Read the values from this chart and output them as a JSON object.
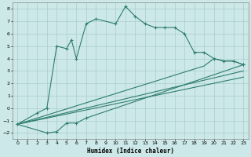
{
  "xlabel": "Humidex (Indice chaleur)",
  "bg_color": "#cce8e8",
  "line_color": "#2e7d6e",
  "grid_color": "#aacccc",
  "xlim": [
    -0.5,
    23.5
  ],
  "ylim": [
    -2.5,
    8.5
  ],
  "xticks": [
    0,
    1,
    2,
    3,
    4,
    5,
    6,
    7,
    8,
    9,
    10,
    11,
    12,
    13,
    14,
    15,
    16,
    17,
    18,
    19,
    20,
    21,
    22,
    23
  ],
  "yticks": [
    -2,
    -1,
    0,
    1,
    2,
    3,
    4,
    5,
    6,
    7,
    8
  ],
  "line1_x": [
    0,
    2,
    3,
    4,
    5,
    5.5,
    6,
    7,
    8,
    10,
    11,
    12,
    13,
    14,
    15,
    16,
    17,
    18,
    19,
    20,
    21,
    22,
    23
  ],
  "line1_y": [
    -1.3,
    -0.4,
    0.0,
    5.0,
    4.8,
    5.5,
    4.0,
    6.8,
    7.2,
    6.8,
    8.2,
    7.4,
    6.8,
    6.5,
    6.5,
    6.5,
    6.0,
    4.5,
    4.5,
    4.0,
    3.8,
    3.8,
    3.5
  ],
  "line2_x": [
    0,
    3,
    4,
    5,
    6,
    7,
    23
  ],
  "line2_y": [
    -1.3,
    -2.0,
    -1.9,
    -1.2,
    -1.2,
    -0.8,
    3.5
  ],
  "line3_x": [
    0,
    19,
    20,
    21,
    22,
    23
  ],
  "line3_y": [
    -1.3,
    3.4,
    4.0,
    3.8,
    3.8,
    3.5
  ],
  "line4_x": [
    0,
    23
  ],
  "line4_y": [
    -1.3,
    3.0
  ],
  "line5_x": [
    0,
    23
  ],
  "line5_y": [
    -1.3,
    2.5
  ]
}
